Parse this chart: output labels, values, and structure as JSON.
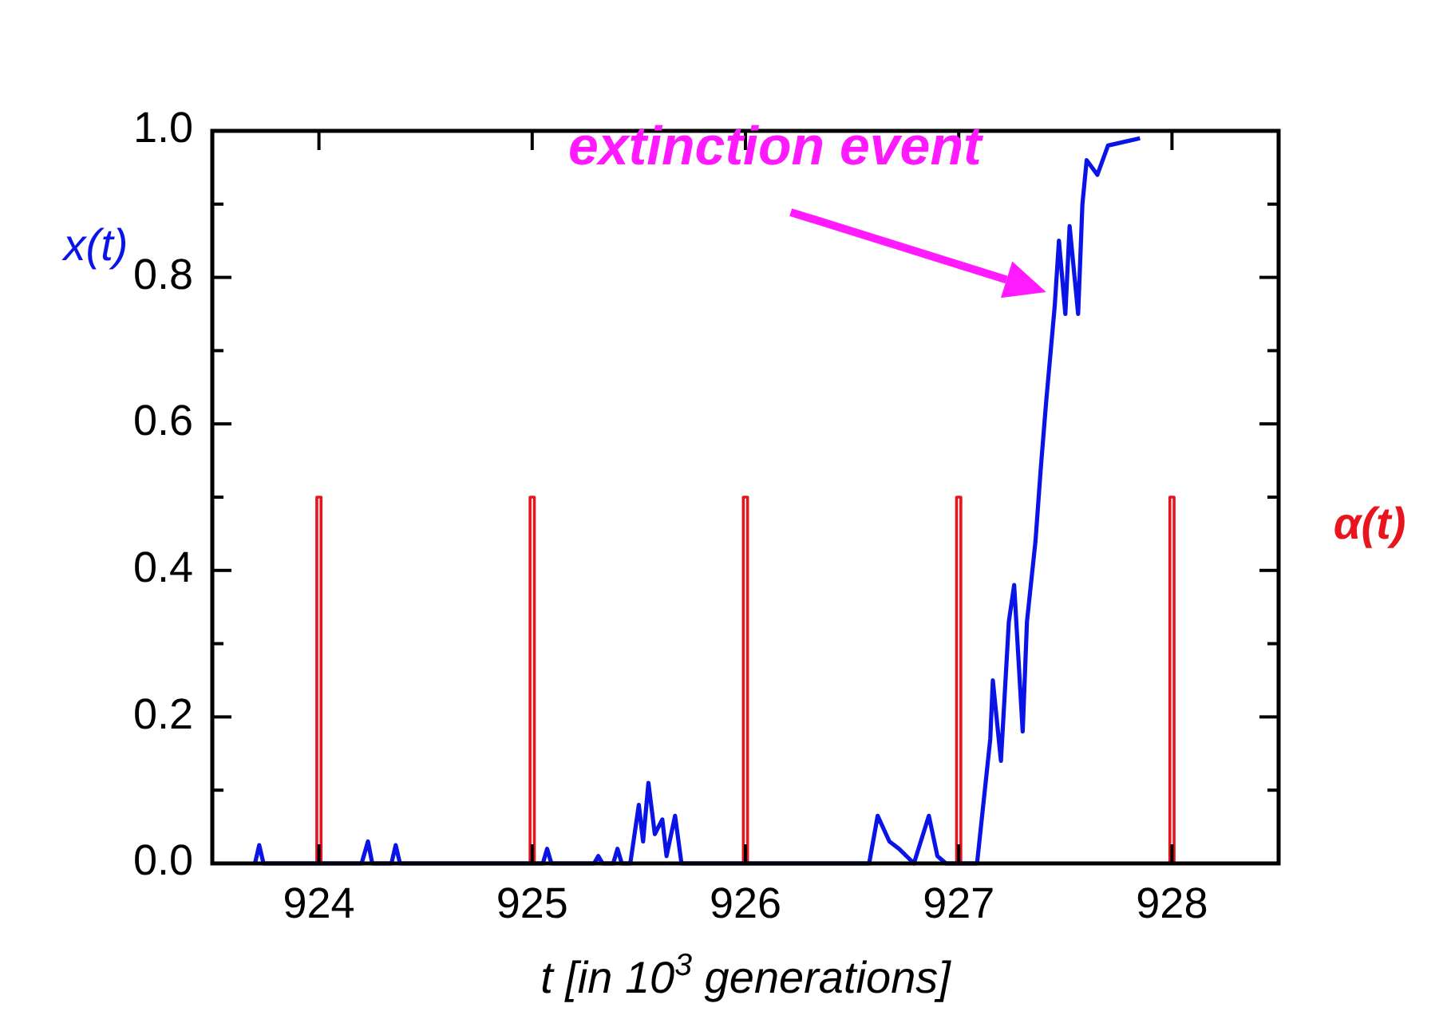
{
  "chart_data": {
    "type": "line",
    "xlabel": "t [in 10$^{3}$ generations]",
    "xlim": [
      923.5,
      928.5
    ],
    "xticks": [
      924,
      925,
      926,
      927,
      928
    ],
    "ylim": [
      0,
      1
    ],
    "yticks": [
      {
        "value": 0,
        "label": "0.0"
      },
      {
        "value": 0.1,
        "label": null
      },
      {
        "value": 0.2,
        "label": "0.2"
      },
      {
        "value": 0.3,
        "label": null
      },
      {
        "value": 0.4,
        "label": "0.4"
      },
      {
        "value": 0.5,
        "label": null
      },
      {
        "value": 0.6,
        "label": "0.6"
      },
      {
        "value": 0.7,
        "label": null
      },
      {
        "value": 0.8,
        "label": "0.8"
      },
      {
        "value": 0.9,
        "label": null
      },
      {
        "value": 1.0,
        "label": "1.0"
      }
    ],
    "grid": false,
    "marker": "none",
    "line_style": "solid",
    "annotations": [
      {
        "text": "extinction event",
        "x": 927.41,
        "y": 0.78
      }
    ],
    "series": [
      {
        "name": "α(t)",
        "color": "#e8141e",
        "x": [
          923.99,
          923.99,
          924.01,
          924.01,
          924.99,
          924.99,
          925.01,
          925.01,
          925.99,
          925.99,
          926.01,
          926.01,
          926.99,
          926.99,
          927.01,
          927.01,
          927.99,
          927.99,
          928.01,
          928.01
        ],
        "values": [
          0,
          0.5,
          0.5,
          0,
          0,
          0.5,
          0.5,
          0,
          0,
          0.5,
          0.5,
          0,
          0,
          0.5,
          0.5,
          0,
          0,
          0.5,
          0.5,
          0
        ]
      },
      {
        "name": "x(t)",
        "color": "#0a14e6",
        "x": [
          923.7,
          923.72,
          923.74,
          924.2,
          924.23,
          924.25,
          924.34,
          924.36,
          924.38,
          925.05,
          925.07,
          925.09,
          925.29,
          925.31,
          925.33,
          925.38,
          925.4,
          925.42,
          925.46,
          925.5,
          925.52,
          925.545,
          925.575,
          925.61,
          925.63,
          925.67,
          925.7,
          926.58,
          926.62,
          926.675,
          926.72,
          926.79,
          926.86,
          926.9,
          926.94,
          927.086,
          927.148,
          927.16,
          927.198,
          927.235,
          927.26,
          927.3,
          927.32,
          927.36,
          927.385,
          927.41,
          927.45,
          927.47,
          927.5,
          927.52,
          927.56,
          927.58,
          927.6,
          927.65,
          927.7,
          927.85
        ],
        "values": [
          0,
          0.025,
          0,
          0,
          0.03,
          0,
          0,
          0.025,
          0,
          0,
          0.02,
          0,
          0,
          0.01,
          0,
          0,
          0.02,
          0,
          0,
          0.08,
          0.03,
          0.11,
          0.04,
          0.06,
          0.01,
          0.065,
          0,
          0,
          0.065,
          0.03,
          0.02,
          0,
          0.065,
          0.01,
          0,
          0,
          0.17,
          0.25,
          0.14,
          0.33,
          0.38,
          0.18,
          0.33,
          0.44,
          0.54,
          0.63,
          0.76,
          0.85,
          0.75,
          0.87,
          0.75,
          0.9,
          0.96,
          0.94,
          0.98,
          0.99
        ]
      }
    ]
  }
}
